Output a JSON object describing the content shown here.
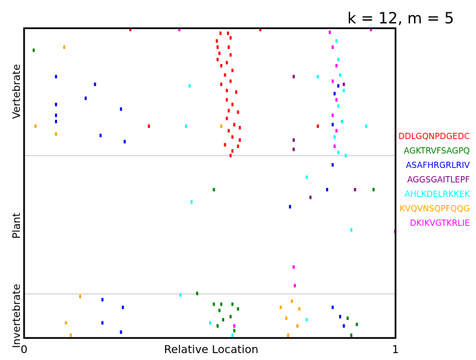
{
  "chart_data": {
    "type": "scatter",
    "title": "k = 12, m = 5",
    "xlabel": "Relative Location",
    "xlim": [
      0,
      1
    ],
    "x_ticks": [
      "0",
      "1"
    ],
    "groups": [
      "Vertebrate",
      "Plant",
      "Invertebrate"
    ],
    "grid": false,
    "legend_position": "right",
    "series": [
      {
        "name": "DDLGQNPDGEDC",
        "color": "#ff0000",
        "points": [
          [
            0.285,
            0.003
          ],
          [
            0.635,
            0.003
          ],
          [
            0.528,
            0.015
          ],
          [
            0.548,
            0.015
          ],
          [
            0.518,
            0.04
          ],
          [
            0.555,
            0.03
          ],
          [
            0.52,
            0.06
          ],
          [
            0.55,
            0.06
          ],
          [
            0.525,
            0.08
          ],
          [
            0.555,
            0.085
          ],
          [
            0.52,
            0.1
          ],
          [
            0.545,
            0.11
          ],
          [
            0.53,
            0.12
          ],
          [
            0.56,
            0.135
          ],
          [
            0.54,
            0.15
          ],
          [
            0.555,
            0.17
          ],
          [
            0.53,
            0.18
          ],
          [
            0.545,
            0.2
          ],
          [
            0.57,
            0.205
          ],
          [
            0.545,
            0.23
          ],
          [
            0.56,
            0.245
          ],
          [
            0.55,
            0.265
          ],
          [
            0.575,
            0.27
          ],
          [
            0.545,
            0.29
          ],
          [
            0.565,
            0.31
          ],
          [
            0.58,
            0.32
          ],
          [
            0.55,
            0.33
          ],
          [
            0.56,
            0.35
          ],
          [
            0.58,
            0.36
          ],
          [
            0.54,
            0.375
          ],
          [
            0.575,
            0.38
          ],
          [
            0.56,
            0.395
          ],
          [
            0.555,
            0.41
          ],
          [
            0.335,
            0.315
          ],
          [
            0.79,
            0.315
          ]
        ]
      },
      {
        "name": "AGKTRVFSAGPQ",
        "color": "#008000",
        "points": [
          [
            0.025,
            0.07
          ],
          [
            0.51,
            0.52
          ],
          [
            0.94,
            0.52
          ],
          [
            0.51,
            0.89
          ],
          [
            0.53,
            0.89
          ],
          [
            0.56,
            0.89
          ],
          [
            0.525,
            0.91
          ],
          [
            0.575,
            0.905
          ],
          [
            0.535,
            0.94
          ],
          [
            0.555,
            0.93
          ],
          [
            0.52,
            0.96
          ],
          [
            0.565,
            0.975
          ],
          [
            0.87,
            0.935
          ],
          [
            0.895,
            0.955
          ],
          [
            0.88,
            0.99
          ],
          [
            0.465,
            0.855
          ]
        ]
      },
      {
        "name": "ASAFHRGRLRIV",
        "color": "#0000ff",
        "points": [
          [
            0.085,
            0.155
          ],
          [
            0.19,
            0.18
          ],
          [
            0.165,
            0.225
          ],
          [
            0.085,
            0.245
          ],
          [
            0.26,
            0.26
          ],
          [
            0.085,
            0.28
          ],
          [
            0.085,
            0.3
          ],
          [
            0.205,
            0.345
          ],
          [
            0.27,
            0.365
          ],
          [
            0.845,
            0.185
          ],
          [
            0.835,
            0.21
          ],
          [
            0.83,
            0.31
          ],
          [
            0.83,
            0.44
          ],
          [
            0.815,
            0.52
          ],
          [
            0.715,
            0.575
          ],
          [
            0.21,
            0.875
          ],
          [
            0.265,
            0.9
          ],
          [
            0.21,
            0.95
          ],
          [
            0.26,
            0.98
          ],
          [
            0.83,
            0.9
          ],
          [
            0.85,
            0.93
          ],
          [
            0.86,
            0.96
          ]
        ]
      },
      {
        "name": "AGGSGAITLEPF",
        "color": "#800080",
        "points": [
          [
            0.725,
            0.155
          ],
          [
            0.725,
            0.36
          ],
          [
            0.725,
            0.39
          ],
          [
            0.77,
            0.545
          ],
          [
            0.89,
            0.52
          ],
          [
            0.855,
            0.3
          ],
          [
            0.86,
            0.18
          ]
        ]
      },
      {
        "name": "AHLKDELRKKEK",
        "color": "#00ffff",
        "points": [
          [
            0.84,
            0.04
          ],
          [
            0.845,
            0.1
          ],
          [
            0.85,
            0.15
          ],
          [
            0.86,
            0.2
          ],
          [
            0.845,
            0.25
          ],
          [
            0.855,
            0.3
          ],
          [
            0.835,
            0.35
          ],
          [
            0.845,
            0.4
          ],
          [
            0.865,
            0.41
          ],
          [
            0.445,
            0.185
          ],
          [
            0.435,
            0.315
          ],
          [
            0.79,
            0.155
          ],
          [
            0.92,
            0.315
          ],
          [
            0.76,
            0.48
          ],
          [
            0.45,
            0.56
          ],
          [
            0.88,
            0.65
          ],
          [
            0.42,
            0.86
          ],
          [
            0.5,
            0.95
          ],
          [
            0.56,
            0.99
          ],
          [
            0.76,
            0.94
          ]
        ]
      },
      {
        "name": "KVQVNSQPFQQG",
        "color": "#ffa500",
        "points": [
          [
            0.107,
            0.06
          ],
          [
            0.03,
            0.315
          ],
          [
            0.085,
            0.34
          ],
          [
            0.53,
            0.315
          ],
          [
            0.15,
            0.865
          ],
          [
            0.112,
            0.95
          ],
          [
            0.125,
            0.99
          ],
          [
            0.69,
            0.9
          ],
          [
            0.72,
            0.88
          ],
          [
            0.74,
            0.905
          ],
          [
            0.705,
            0.935
          ],
          [
            0.735,
            0.96
          ],
          [
            0.71,
            0.99
          ]
        ]
      },
      {
        "name": "DKIKVGTKRLIE",
        "color": "#ff00ff",
        "points": [
          [
            0.417,
            0.003
          ],
          [
            0.822,
            0.012
          ],
          [
            0.933,
            0.003
          ],
          [
            0.83,
            0.06
          ],
          [
            0.84,
            0.12
          ],
          [
            0.83,
            0.17
          ],
          [
            0.84,
            0.23
          ],
          [
            0.83,
            0.28
          ],
          [
            0.84,
            0.33
          ],
          [
            0.835,
            0.38
          ],
          [
            0.725,
            0.77
          ],
          [
            0.728,
            0.83
          ],
          [
            0.998,
            0.655
          ],
          [
            0.565,
            0.96
          ]
        ]
      }
    ]
  }
}
